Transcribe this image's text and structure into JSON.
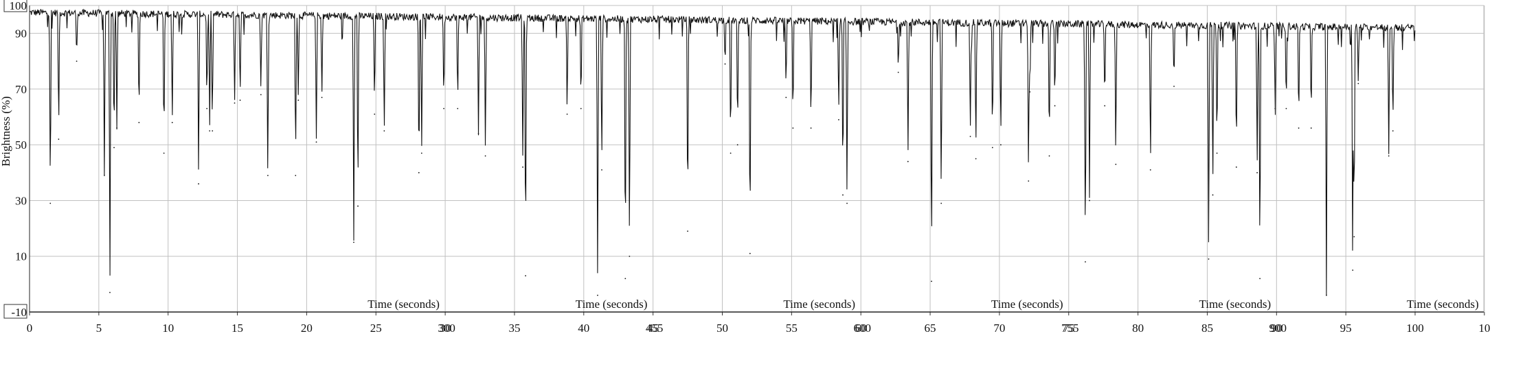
{
  "chart_data": {
    "type": "line",
    "title": "",
    "ylabel": "Brightness (%)",
    "xlabel_repeats": [
      "Time (seconds)",
      "Time (seconds)",
      "Time (seconds)",
      "Time (seconds)",
      "Time (seconds)",
      "Time (seconds)"
    ],
    "xlim": [
      0,
      105
    ],
    "ylim": [
      -10,
      100
    ],
    "grid": true,
    "x_ticks_primary": [
      "0",
      "5",
      "10",
      "15",
      "20",
      "25",
      "30",
      "35",
      "40",
      "45",
      "50",
      "55",
      "60",
      "65",
      "70",
      "75",
      "80",
      "85",
      "90",
      "95",
      "100",
      "10"
    ],
    "x_ticks_overlay": [
      "300",
      "455",
      "600",
      "755",
      "900"
    ],
    "y_ticks": [
      "-10",
      "10",
      "30",
      "50",
      "70",
      "90",
      "100"
    ],
    "baseline_start": 97.5,
    "baseline_end": 92,
    "series": [
      {
        "color": "#111111",
        "dips": [
          {
            "x": 1.5,
            "y": 29
          },
          {
            "x": 2.1,
            "y": 52
          },
          {
            "x": 3.4,
            "y": 80
          },
          {
            "x": 5.4,
            "y": 39
          },
          {
            "x": 5.8,
            "y": -3
          },
          {
            "x": 6.1,
            "y": 49
          },
          {
            "x": 6.3,
            "y": 56
          },
          {
            "x": 7.9,
            "y": 58
          },
          {
            "x": 9.7,
            "y": 47
          },
          {
            "x": 10.3,
            "y": 58
          },
          {
            "x": 12.2,
            "y": 36
          },
          {
            "x": 12.8,
            "y": 63
          },
          {
            "x": 13.0,
            "y": 55
          },
          {
            "x": 13.2,
            "y": 55
          },
          {
            "x": 14.8,
            "y": 65
          },
          {
            "x": 15.2,
            "y": 66
          },
          {
            "x": 16.7,
            "y": 68
          },
          {
            "x": 17.2,
            "y": 39
          },
          {
            "x": 19.2,
            "y": 39
          },
          {
            "x": 19.4,
            "y": 66
          },
          {
            "x": 20.7,
            "y": 51
          },
          {
            "x": 21.1,
            "y": 67
          },
          {
            "x": 23.4,
            "y": 15
          },
          {
            "x": 23.7,
            "y": 28
          },
          {
            "x": 24.9,
            "y": 61
          },
          {
            "x": 25.6,
            "y": 55
          },
          {
            "x": 28.1,
            "y": 40
          },
          {
            "x": 28.3,
            "y": 47
          },
          {
            "x": 29.9,
            "y": 63
          },
          {
            "x": 30.9,
            "y": 63
          },
          {
            "x": 32.4,
            "y": 54
          },
          {
            "x": 32.9,
            "y": 46
          },
          {
            "x": 35.6,
            "y": 42
          },
          {
            "x": 35.8,
            "y": 3
          },
          {
            "x": 38.8,
            "y": 61
          },
          {
            "x": 39.8,
            "y": 63
          },
          {
            "x": 41.0,
            "y": -4
          },
          {
            "x": 41.3,
            "y": 41
          },
          {
            "x": 43.0,
            "y": 2
          },
          {
            "x": 43.3,
            "y": 10
          },
          {
            "x": 47.5,
            "y": 19
          },
          {
            "x": 50.2,
            "y": 79
          },
          {
            "x": 50.6,
            "y": 47
          },
          {
            "x": 51.1,
            "y": 50
          },
          {
            "x": 52.0,
            "y": 11
          },
          {
            "x": 54.6,
            "y": 67
          },
          {
            "x": 55.1,
            "y": 56
          },
          {
            "x": 56.4,
            "y": 56
          },
          {
            "x": 58.4,
            "y": 59
          },
          {
            "x": 58.7,
            "y": 32
          },
          {
            "x": 59.0,
            "y": 29
          },
          {
            "x": 62.7,
            "y": 76
          },
          {
            "x": 63.4,
            "y": 44
          },
          {
            "x": 65.1,
            "y": 1
          },
          {
            "x": 65.8,
            "y": 29
          },
          {
            "x": 67.9,
            "y": 53
          },
          {
            "x": 68.3,
            "y": 45
          },
          {
            "x": 69.5,
            "y": 49
          },
          {
            "x": 70.1,
            "y": 50
          },
          {
            "x": 72.1,
            "y": 37
          },
          {
            "x": 72.2,
            "y": 69
          },
          {
            "x": 73.6,
            "y": 46
          },
          {
            "x": 74.0,
            "y": 64
          },
          {
            "x": 76.2,
            "y": 8
          },
          {
            "x": 76.5,
            "y": 30
          },
          {
            "x": 77.6,
            "y": 64
          },
          {
            "x": 78.4,
            "y": 43
          },
          {
            "x": 80.9,
            "y": 41
          },
          {
            "x": 82.6,
            "y": 71
          },
          {
            "x": 85.1,
            "y": 9
          },
          {
            "x": 85.4,
            "y": 32
          },
          {
            "x": 85.7,
            "y": 47
          },
          {
            "x": 87.1,
            "y": 42
          },
          {
            "x": 88.6,
            "y": 40
          },
          {
            "x": 88.8,
            "y": 2
          },
          {
            "x": 89.9,
            "y": 63
          },
          {
            "x": 90.7,
            "y": 63
          },
          {
            "x": 91.6,
            "y": 56
          },
          {
            "x": 92.5,
            "y": 56
          },
          {
            "x": 93.6,
            "y": -4
          },
          {
            "x": 95.5,
            "y": 5
          },
          {
            "x": 95.6,
            "y": 17
          },
          {
            "x": 95.9,
            "y": 72
          },
          {
            "x": 98.1,
            "y": 46
          },
          {
            "x": 98.4,
            "y": 55
          }
        ]
      }
    ]
  }
}
